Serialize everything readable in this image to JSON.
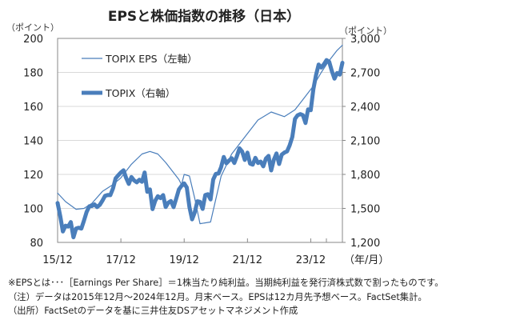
{
  "chart_data": {
    "type": "line",
    "title": "EPSと株価指数の推移（日本）",
    "left_axis": {
      "unit_label": "（ポイント）",
      "range": [
        80,
        200
      ],
      "ticks": [
        80,
        100,
        120,
        140,
        160,
        180,
        200
      ],
      "tick_labels": [
        "80",
        "100",
        "120",
        "140",
        "160",
        "180",
        "200"
      ]
    },
    "right_axis": {
      "unit_label": "（ポイント）",
      "range": [
        1200,
        3000
      ],
      "ticks": [
        1200,
        1500,
        1800,
        2100,
        2400,
        2700,
        3000
      ],
      "tick_labels": [
        "1,200",
        "1,500",
        "1,800",
        "2,100",
        "2,400",
        "2,700",
        "3,000"
      ]
    },
    "x_axis": {
      "range": [
        "2015-12",
        "2024-12"
      ],
      "tick_labels": [
        "15/12",
        "17/12",
        "19/12",
        "21/12",
        "23/12"
      ],
      "tick_dates": [
        "2015-12",
        "2017-12",
        "2019-12",
        "2021-12",
        "2023-12"
      ],
      "unit_label": "（年/月）"
    },
    "grid": "horizontal",
    "legend_position": "top-left",
    "series": [
      {
        "name": "TOPIX  EPS（左軸）",
        "axis": "left",
        "color": "#4a7ebb",
        "points": [
          [
            "2015-12",
            109
          ],
          [
            "2016-03",
            104
          ],
          [
            "2016-07",
            99.5
          ],
          [
            "2016-10",
            100
          ],
          [
            "2017-01",
            103
          ],
          [
            "2017-05",
            110
          ],
          [
            "2017-09",
            114
          ],
          [
            "2017-12",
            118
          ],
          [
            "2018-04",
            126
          ],
          [
            "2018-08",
            132
          ],
          [
            "2018-11",
            133.5
          ],
          [
            "2019-02",
            132
          ],
          [
            "2019-05",
            127
          ],
          [
            "2019-08",
            121
          ],
          [
            "2019-10",
            117
          ],
          [
            "2019-11",
            114
          ],
          [
            "2019-12",
            120
          ],
          [
            "2020-02",
            119
          ],
          [
            "2020-04",
            106
          ],
          [
            "2020-06",
            91
          ],
          [
            "2020-10",
            92
          ],
          [
            "2021-02",
            119
          ],
          [
            "2021-06",
            132
          ],
          [
            "2021-12",
            144
          ],
          [
            "2022-04",
            152
          ],
          [
            "2022-09",
            156.7
          ],
          [
            "2023-02",
            154
          ],
          [
            "2023-06",
            158
          ],
          [
            "2023-10",
            166
          ],
          [
            "2024-01",
            172
          ],
          [
            "2024-04",
            180
          ],
          [
            "2024-07",
            187
          ],
          [
            "2024-10",
            193
          ],
          [
            "2024-12",
            196
          ]
        ]
      },
      {
        "name": "TOPIX（右軸）",
        "axis": "right",
        "color": "#4a7ebb",
        "points": [
          [
            "2015-12",
            1547
          ],
          [
            "2016-01",
            1432
          ],
          [
            "2016-02",
            1297
          ],
          [
            "2016-03",
            1347
          ],
          [
            "2016-04",
            1340
          ],
          [
            "2016-05",
            1379
          ],
          [
            "2016-06",
            1245
          ],
          [
            "2016-07",
            1322
          ],
          [
            "2016-08",
            1329
          ],
          [
            "2016-09",
            1322
          ],
          [
            "2016-10",
            1393
          ],
          [
            "2016-11",
            1469
          ],
          [
            "2016-12",
            1518
          ],
          [
            "2017-01",
            1521
          ],
          [
            "2017-02",
            1535
          ],
          [
            "2017-03",
            1512
          ],
          [
            "2017-04",
            1531
          ],
          [
            "2017-05",
            1568
          ],
          [
            "2017-06",
            1611
          ],
          [
            "2017-07",
            1618
          ],
          [
            "2017-08",
            1617
          ],
          [
            "2017-09",
            1675
          ],
          [
            "2017-10",
            1765
          ],
          [
            "2017-11",
            1792
          ],
          [
            "2017-12",
            1817
          ],
          [
            "2018-01",
            1836
          ],
          [
            "2018-02",
            1768
          ],
          [
            "2018-03",
            1716
          ],
          [
            "2018-04",
            1777
          ],
          [
            "2018-05",
            1747
          ],
          [
            "2018-06",
            1730
          ],
          [
            "2018-07",
            1753
          ],
          [
            "2018-08",
            1735
          ],
          [
            "2018-09",
            1817
          ],
          [
            "2018-10",
            1646
          ],
          [
            "2018-11",
            1667
          ],
          [
            "2018-12",
            1494
          ],
          [
            "2019-01",
            1567
          ],
          [
            "2019-02",
            1607
          ],
          [
            "2019-03",
            1591
          ],
          [
            "2019-04",
            1617
          ],
          [
            "2019-05",
            1512
          ],
          [
            "2019-06",
            1551
          ],
          [
            "2019-07",
            1565
          ],
          [
            "2019-08",
            1511
          ],
          [
            "2019-09",
            1587
          ],
          [
            "2019-10",
            1667
          ],
          [
            "2019-11",
            1699
          ],
          [
            "2019-12",
            1721
          ],
          [
            "2020-01",
            1684
          ],
          [
            "2020-02",
            1511
          ],
          [
            "2020-03",
            1403
          ],
          [
            "2020-04",
            1464
          ],
          [
            "2020-05",
            1563
          ],
          [
            "2020-06",
            1558
          ],
          [
            "2020-07",
            1496
          ],
          [
            "2020-08",
            1618
          ],
          [
            "2020-09",
            1625
          ],
          [
            "2020-10",
            1579
          ],
          [
            "2020-11",
            1755
          ],
          [
            "2020-12",
            1805
          ],
          [
            "2021-01",
            1808
          ],
          [
            "2021-02",
            1864
          ],
          [
            "2021-03",
            1954
          ],
          [
            "2021-04",
            1898
          ],
          [
            "2021-05",
            1922
          ],
          [
            "2021-06",
            1943
          ],
          [
            "2021-07",
            1901
          ],
          [
            "2021-08",
            1960
          ],
          [
            "2021-09",
            2030
          ],
          [
            "2021-10",
            2001
          ],
          [
            "2021-11",
            1928
          ],
          [
            "2021-12",
            1992
          ],
          [
            "2022-01",
            1895
          ],
          [
            "2022-02",
            1886
          ],
          [
            "2022-03",
            1946
          ],
          [
            "2022-04",
            1900
          ],
          [
            "2022-05",
            1913
          ],
          [
            "2022-06",
            1871
          ],
          [
            "2022-07",
            1940
          ],
          [
            "2022-08",
            1963
          ],
          [
            "2022-09",
            1835
          ],
          [
            "2022-10",
            1929
          ],
          [
            "2022-11",
            1985
          ],
          [
            "2022-12",
            1892
          ],
          [
            "2023-01",
            1975
          ],
          [
            "2023-02",
            1993
          ],
          [
            "2023-03",
            2003
          ],
          [
            "2023-04",
            2057
          ],
          [
            "2023-05",
            2131
          ],
          [
            "2023-06",
            2289
          ],
          [
            "2023-07",
            2322
          ],
          [
            "2023-08",
            2332
          ],
          [
            "2023-09",
            2323
          ],
          [
            "2023-10",
            2254
          ],
          [
            "2023-11",
            2374
          ],
          [
            "2023-12",
            2366
          ],
          [
            "2024-01",
            2551
          ],
          [
            "2024-02",
            2675
          ],
          [
            "2024-03",
            2769
          ],
          [
            "2024-04",
            2743
          ],
          [
            "2024-05",
            2772
          ],
          [
            "2024-06",
            2809
          ],
          [
            "2024-07",
            2794
          ],
          [
            "2024-08",
            2712
          ],
          [
            "2024-09",
            2645
          ],
          [
            "2024-10",
            2695
          ],
          [
            "2024-11",
            2680
          ],
          [
            "2024-12",
            2785
          ]
        ]
      }
    ]
  },
  "notes": [
    "※EPSとは･･･［Earnings Per Share］＝1株当たり純利益。当期純利益を発行済株式数で割ったものです。",
    "（注）データは2015年12月～2024年12月。月末ベース。EPSは12カ月先予想ベース。FactSet集計。",
    "（出所）FactSetのデータを基に三井住友DSアセットマネジメント作成"
  ]
}
